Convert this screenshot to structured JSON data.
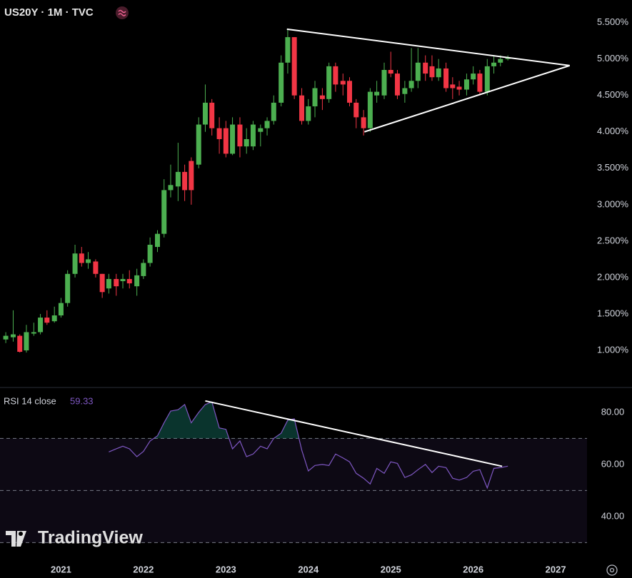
{
  "chart_data": {
    "type": "candlestick",
    "title": "US20Y · 1M · TVC",
    "watermark": "TradingView",
    "x": [
      2020.33,
      2020.42,
      2020.5,
      2020.58,
      2020.67,
      2020.75,
      2020.83,
      2020.92,
      2021.0,
      2021.08,
      2021.17,
      2021.25,
      2021.33,
      2021.42,
      2021.5,
      2021.58,
      2021.67,
      2021.75,
      2021.83,
      2021.92,
      2022.0,
      2022.08,
      2022.17,
      2022.25,
      2022.33,
      2022.42,
      2022.5,
      2022.58,
      2022.67,
      2022.75,
      2022.83,
      2022.92,
      2023.0,
      2023.08,
      2023.17,
      2023.25,
      2023.33,
      2023.42,
      2023.5,
      2023.58,
      2023.67,
      2023.75,
      2023.83,
      2023.92,
      2024.0,
      2024.08,
      2024.17,
      2024.25,
      2024.33,
      2024.42,
      2024.5,
      2024.58,
      2024.67,
      2024.75,
      2024.83,
      2024.92,
      2025.0,
      2025.08,
      2025.17,
      2025.25,
      2025.33,
      2025.42,
      2025.5,
      2025.58,
      2025.67,
      2025.75,
      2025.83,
      2025.92,
      2026.0,
      2026.08,
      2026.17,
      2026.25,
      2026.33,
      2026.42
    ],
    "open": [
      1.15,
      1.18,
      1.2,
      1.0,
      1.23,
      1.25,
      1.45,
      1.4,
      1.48,
      1.65,
      2.05,
      2.33,
      2.2,
      2.22,
      2.05,
      1.85,
      1.98,
      1.95,
      1.98,
      1.88,
      2.02,
      2.2,
      2.42,
      2.6,
      3.2,
      3.25,
      3.45,
      3.6,
      3.55,
      4.1,
      4.4,
      4.05,
      4.05,
      3.7,
      4.1,
      3.8,
      3.8,
      4.0,
      4.05,
      4.15,
      4.4,
      4.95,
      5.3,
      4.5,
      4.15,
      4.35,
      4.5,
      4.45,
      4.9,
      4.7,
      4.7,
      4.4,
      4.2,
      4.05,
      4.5,
      4.5,
      4.85,
      4.8,
      4.52,
      4.6,
      4.7,
      4.95,
      4.9,
      4.75,
      4.87,
      4.65,
      4.62,
      4.58,
      4.72,
      4.8,
      4.55,
      4.9,
      4.95,
      5.0
    ],
    "high": [
      1.25,
      1.55,
      1.22,
      1.35,
      1.38,
      1.5,
      1.55,
      1.6,
      1.72,
      2.1,
      2.45,
      2.42,
      2.35,
      2.25,
      2.05,
      2.05,
      2.05,
      2.05,
      2.1,
      2.12,
      2.25,
      2.55,
      2.65,
      3.35,
      3.55,
      3.85,
      3.55,
      3.65,
      4.2,
      4.65,
      4.45,
      4.2,
      4.15,
      4.2,
      4.2,
      4.05,
      4.15,
      4.1,
      4.2,
      4.5,
      5.05,
      5.4,
      5.3,
      4.6,
      4.45,
      4.7,
      4.6,
      4.95,
      4.95,
      4.8,
      4.75,
      4.45,
      4.3,
      4.6,
      4.7,
      4.95,
      5.1,
      4.85,
      4.7,
      5.15,
      5.15,
      5.05,
      5.05,
      5.0,
      4.95,
      4.75,
      4.7,
      4.8,
      4.9,
      4.85,
      5.0,
      5.05,
      5.05,
      5.05
    ],
    "low": [
      1.1,
      1.12,
      0.97,
      0.97,
      1.2,
      1.22,
      1.35,
      1.38,
      1.45,
      1.6,
      2.0,
      2.15,
      2.12,
      2.0,
      1.72,
      1.78,
      1.75,
      1.85,
      1.85,
      1.75,
      1.98,
      2.15,
      2.35,
      2.55,
      3.1,
      3.05,
      3.05,
      3.0,
      3.5,
      4.0,
      3.95,
      3.7,
      3.65,
      3.68,
      3.65,
      3.7,
      3.75,
      3.8,
      3.95,
      4.1,
      4.35,
      4.8,
      4.45,
      4.1,
      4.1,
      4.2,
      4.3,
      4.4,
      4.55,
      4.5,
      4.35,
      4.05,
      3.95,
      4.0,
      4.4,
      4.45,
      4.75,
      4.45,
      4.4,
      4.55,
      4.6,
      4.7,
      4.7,
      4.7,
      4.55,
      4.45,
      4.5,
      4.5,
      4.65,
      4.5,
      4.5,
      4.8,
      4.9,
      4.98
    ],
    "close": [
      1.2,
      1.22,
      0.98,
      1.25,
      1.25,
      1.45,
      1.38,
      1.48,
      1.65,
      2.05,
      2.33,
      2.2,
      2.25,
      2.05,
      1.8,
      1.98,
      1.88,
      1.98,
      1.92,
      2.03,
      2.2,
      2.45,
      2.6,
      3.2,
      3.27,
      3.45,
      3.2,
      3.2,
      4.1,
      4.4,
      4.05,
      3.9,
      3.7,
      4.1,
      3.8,
      3.9,
      4.1,
      4.05,
      4.15,
      4.4,
      4.95,
      5.3,
      4.5,
      4.15,
      4.35,
      4.6,
      4.45,
      4.9,
      4.65,
      4.65,
      4.4,
      4.2,
      4.05,
      4.55,
      4.55,
      4.85,
      4.8,
      4.5,
      4.6,
      4.7,
      4.95,
      4.8,
      4.75,
      4.87,
      4.6,
      4.6,
      4.58,
      4.72,
      4.8,
      4.55,
      4.9,
      4.95,
      5.0,
      5.02
    ],
    "up_color": "#4caf50",
    "down_color": "#f23645",
    "xlim": [
      2020.26,
      2027.38
    ],
    "xticks": [
      2021,
      2022,
      2023,
      2024,
      2025,
      2026,
      2027
    ],
    "ylim": [
      0.52,
      5.81
    ],
    "yticks": [
      {
        "value": 5.5,
        "label": "5.500%"
      },
      {
        "value": 5.0,
        "label": "5.000%"
      },
      {
        "value": 4.5,
        "label": "4.500%"
      },
      {
        "value": 4.0,
        "label": "4.000%"
      },
      {
        "value": 3.5,
        "label": "3.500%"
      },
      {
        "value": 3.0,
        "label": "3.000%"
      },
      {
        "value": 2.5,
        "label": "2.500%"
      },
      {
        "value": 2.0,
        "label": "2.000%"
      },
      {
        "value": 1.5,
        "label": "1.500%"
      },
      {
        "value": 1.0,
        "label": "1.000%"
      }
    ],
    "trendlines": [
      {
        "x": [
          2023.74,
          2027.17
        ],
        "y": [
          5.41,
          4.91
        ]
      },
      {
        "x": [
          2024.68,
          2027.17
        ],
        "y": [
          4.0,
          4.91
        ]
      }
    ],
    "trendline_color": "#ffffff",
    "rsi": {
      "label": "RSI 14 close",
      "last_value": 59.33,
      "color": "#7e57c2",
      "fill_color": "#22ab94",
      "values": [
        null,
        null,
        null,
        null,
        null,
        null,
        null,
        null,
        null,
        null,
        null,
        null,
        null,
        null,
        null,
        64.8,
        66,
        67,
        66,
        63,
        65,
        69,
        71,
        76,
        80.5,
        81,
        83,
        76,
        80,
        83,
        84,
        74,
        73.5,
        66,
        69,
        63,
        64,
        67,
        66,
        70,
        72,
        77,
        77.5,
        65.5,
        57.5,
        59.6,
        60,
        59.6,
        64,
        62.5,
        61,
        56.6,
        54.7,
        52.5,
        58.5,
        56.6,
        61,
        60.4,
        55,
        56,
        58,
        60,
        56.9,
        59.3,
        58.8,
        54.7,
        54,
        55,
        57.4,
        58,
        51,
        58.5,
        58.8,
        59.33
      ],
      "ylim": [
        26,
        89
      ],
      "yticks": [
        {
          "value": 80,
          "label": "80.00"
        },
        {
          "value": 60,
          "label": "60.00"
        },
        {
          "value": 40,
          "label": "40.00"
        }
      ],
      "bands": [
        70,
        50,
        30
      ],
      "trendline": {
        "x": [
          2022.75,
          2026.35
        ],
        "y": [
          84.4,
          59.3
        ]
      }
    }
  }
}
